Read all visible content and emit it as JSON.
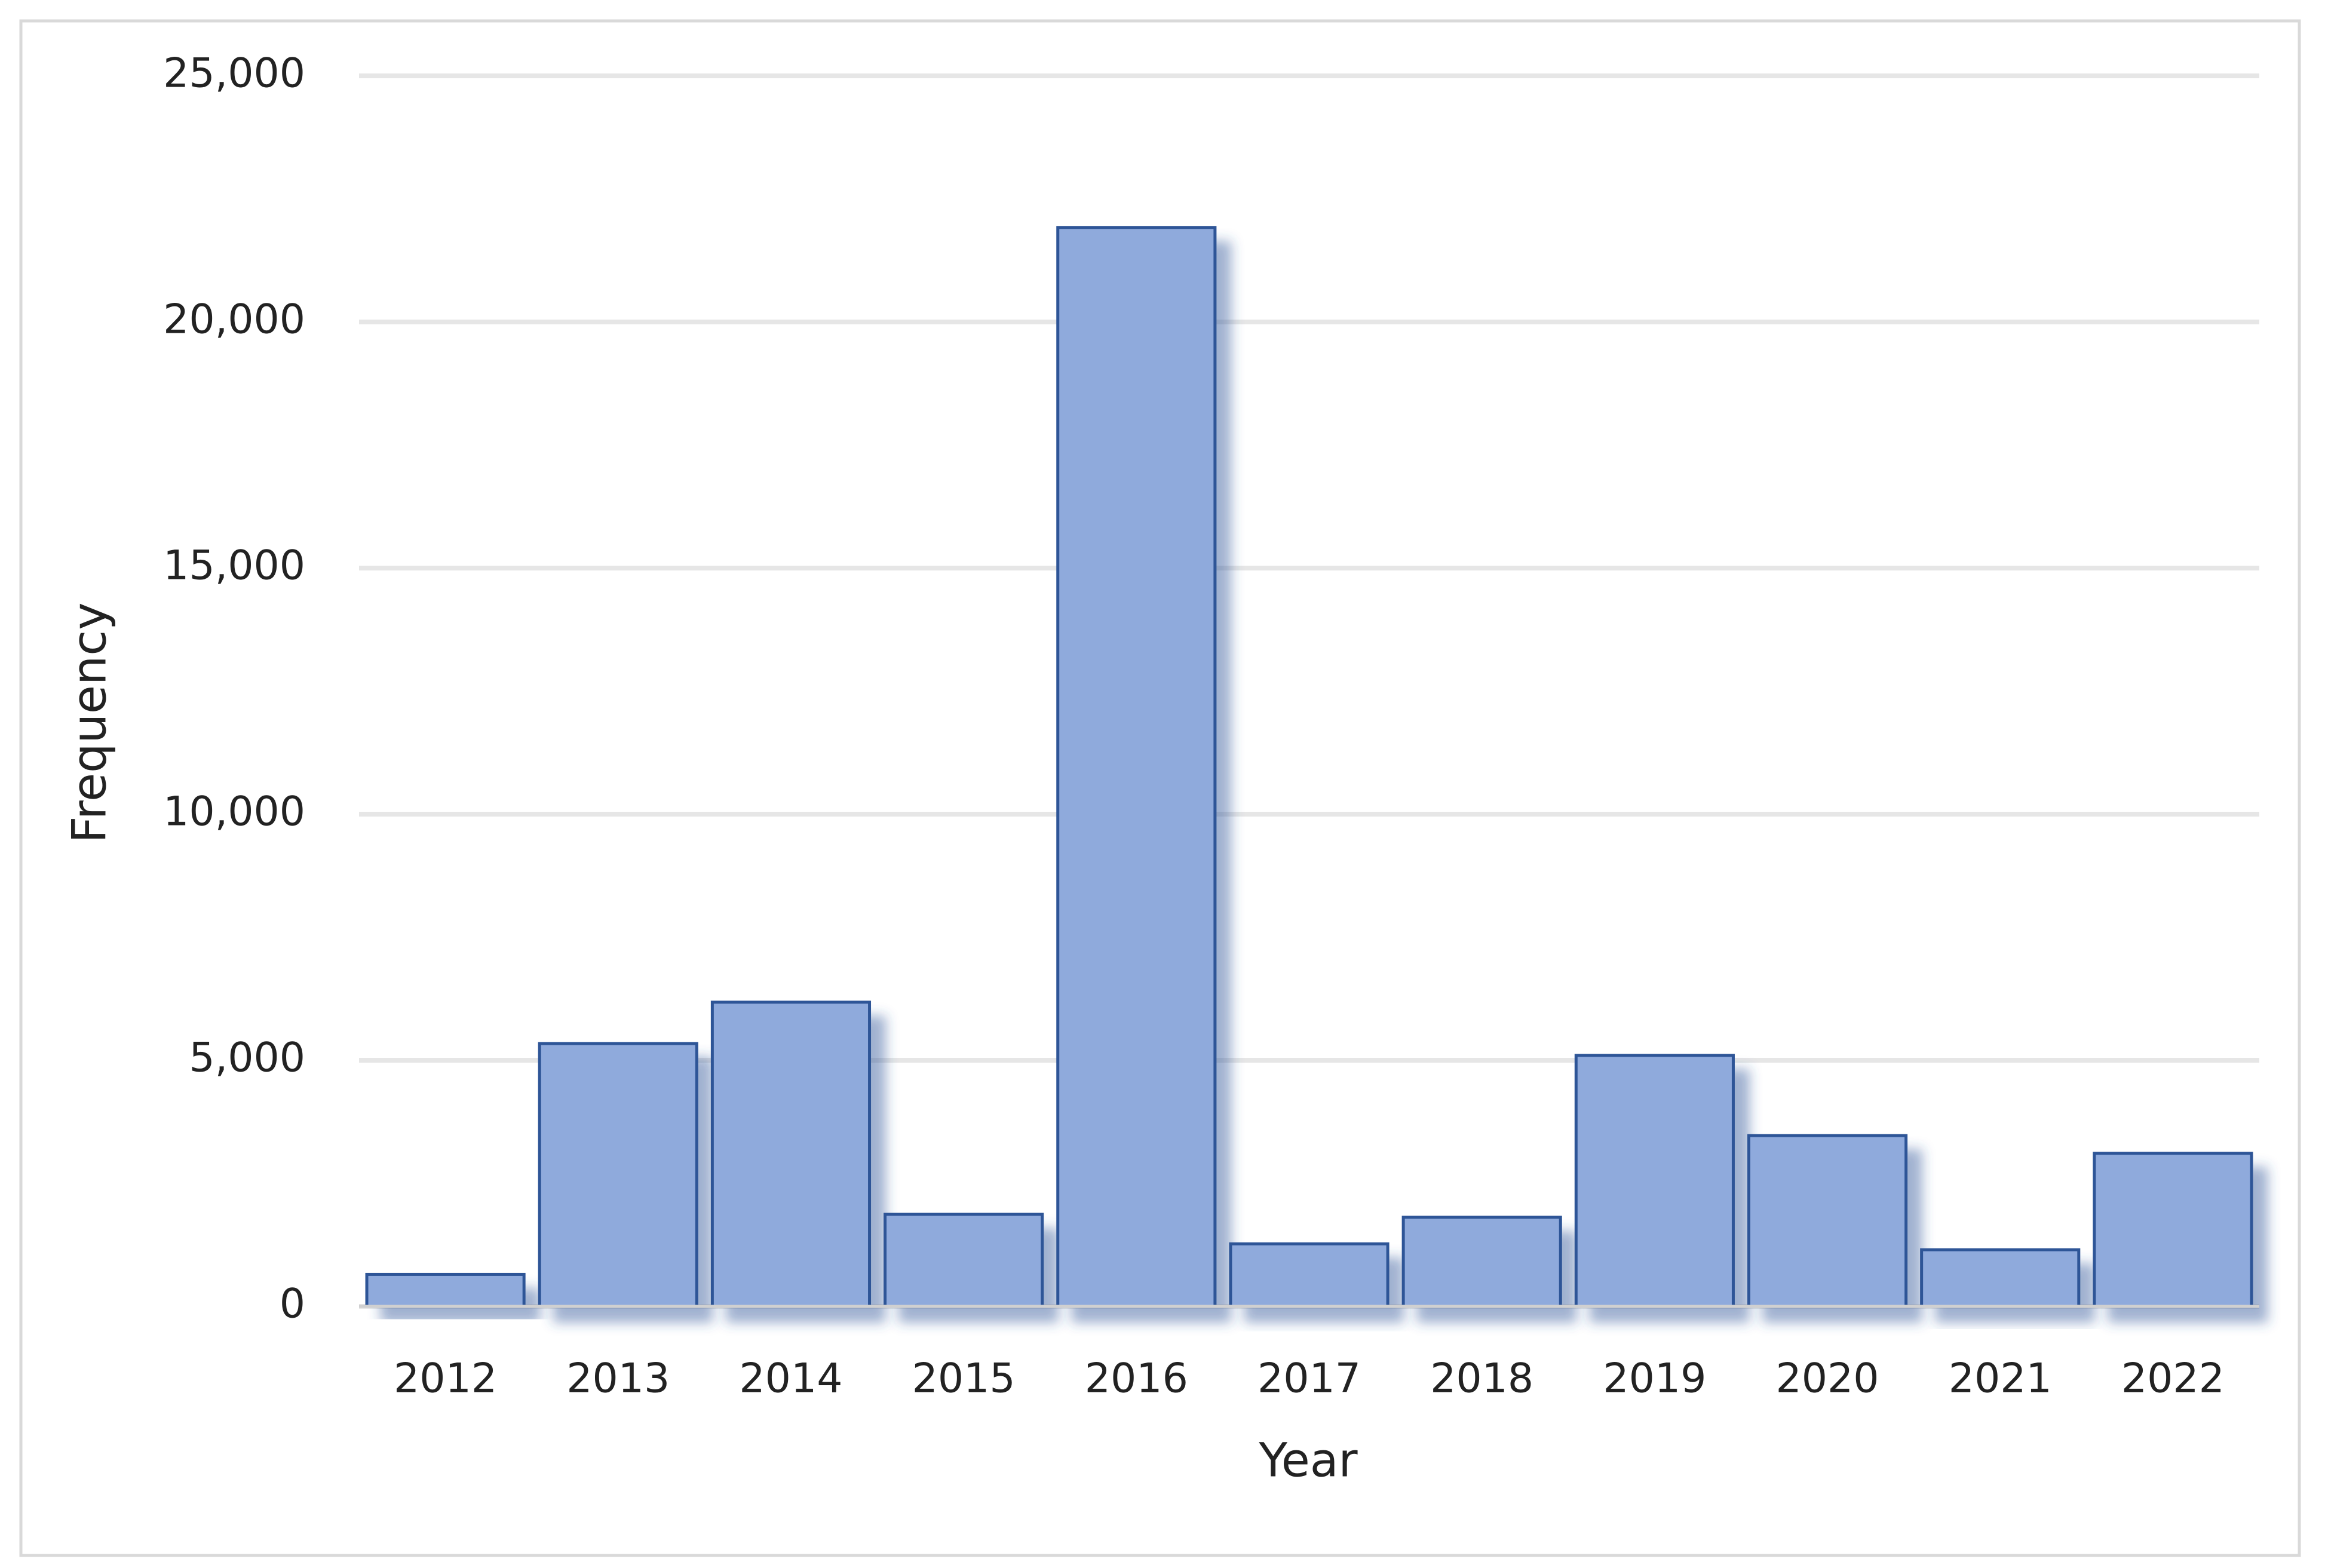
{
  "chart_data": {
    "type": "bar",
    "x_label": "Year",
    "y_label": "Frequency",
    "categories": [
      "2012",
      "2013",
      "2014",
      "2015",
      "2016",
      "2017",
      "2018",
      "2019",
      "2020",
      "2021",
      "2022"
    ],
    "values": [
      650,
      5340,
      6180,
      1870,
      21920,
      1270,
      1810,
      5100,
      3470,
      1150,
      3110
    ],
    "color": "#8faadc",
    "edge_color": "#2f5597",
    "ylim": [
      0,
      25000
    ],
    "yticks": [
      0,
      {
        "value": 5000,
        "label": "5,000"
      },
      {
        "value": 10000,
        "label": "10,000"
      },
      {
        "value": 15000,
        "label": "15,000"
      },
      {
        "value": 20000,
        "label": "20,000"
      },
      {
        "value": 25000,
        "label": "25,000"
      }
    ],
    "grid": true
  }
}
